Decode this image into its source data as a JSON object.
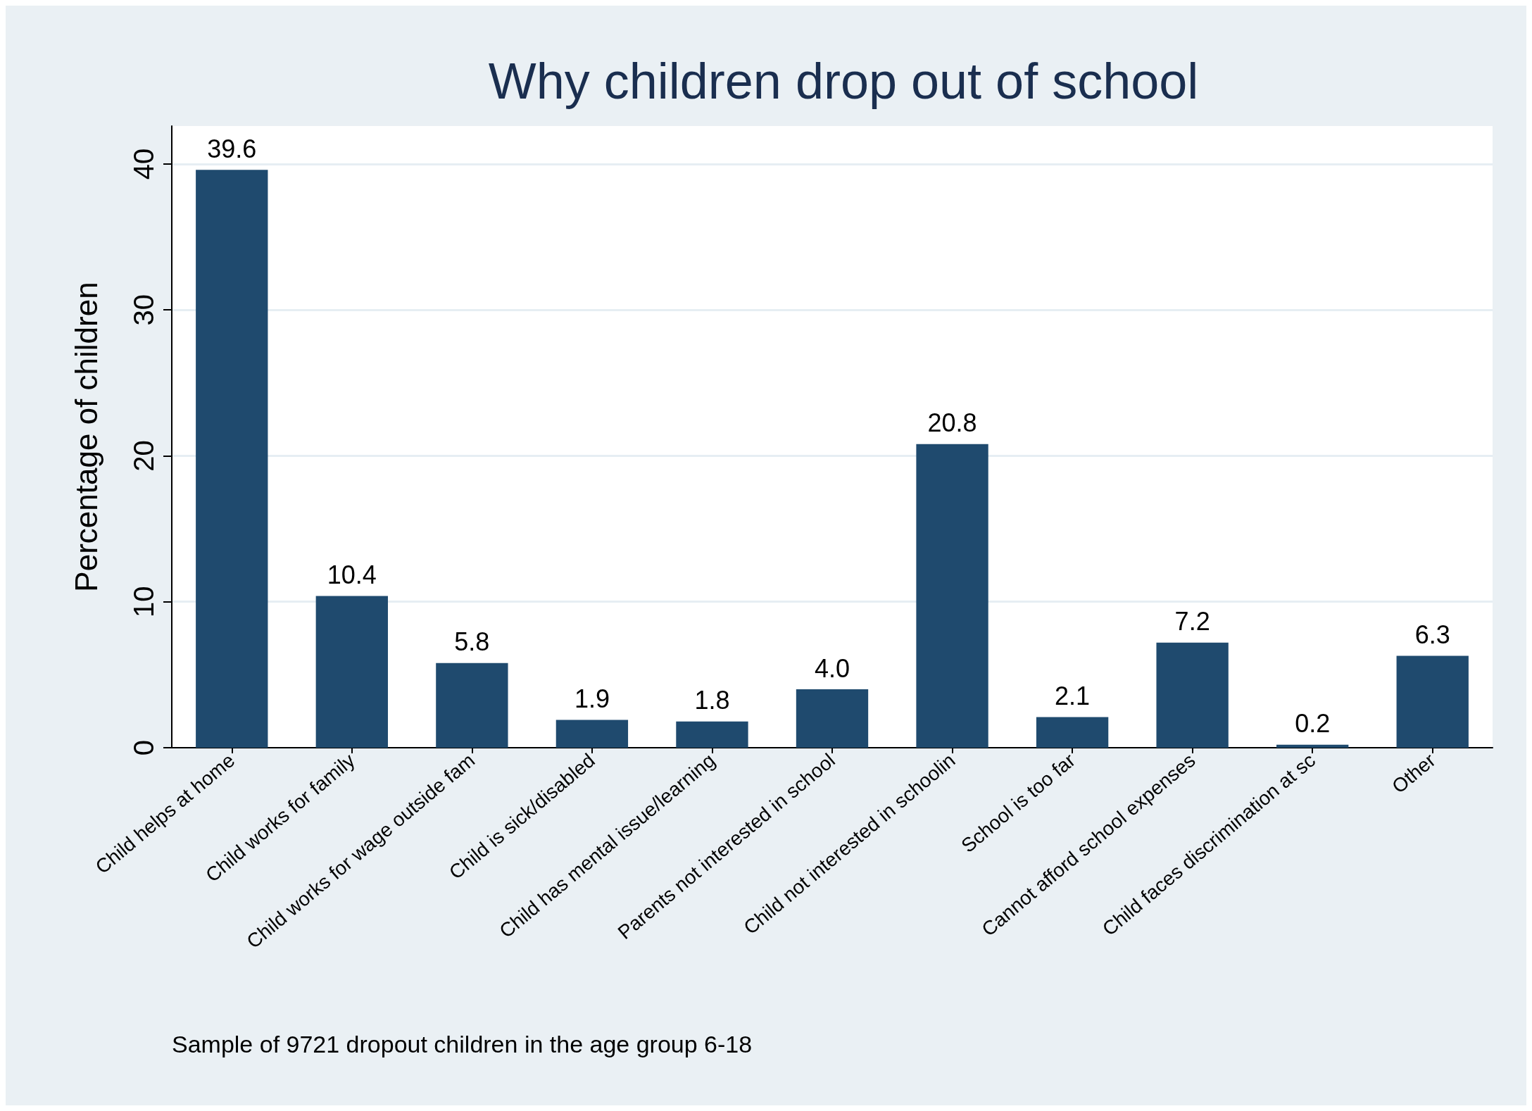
{
  "chart_data": {
    "type": "bar",
    "title": "Why children drop out of school",
    "ylabel": "Percentage of children",
    "categories": [
      "Child helps at home",
      "Child works for family",
      "Child works for wage outside fam",
      "Child is sick/disabled",
      "Child has mental issue/learning",
      "Parents not interested in school",
      "Child not interested in schoolin",
      "School is too far",
      "Cannot afford school expenses",
      "Child faces discrimination at sc",
      "Other"
    ],
    "values": [
      39.6,
      10.4,
      5.8,
      1.9,
      1.8,
      4.0,
      20.8,
      2.1,
      7.2,
      0.2,
      6.3
    ],
    "value_labels": [
      "39.6",
      "10.4",
      "5.8",
      "1.9",
      "1.8",
      "4.0",
      "20.8",
      "2.1",
      "7.2",
      "0.2",
      "6.3"
    ],
    "color": "#1f4a6e",
    "ylim": [
      0,
      42.6
    ],
    "yticks": [
      0,
      10,
      20,
      30,
      40
    ],
    "grid": "y",
    "annotations": [
      "Sample of 9721 dropout children in the age group 6-18"
    ]
  }
}
